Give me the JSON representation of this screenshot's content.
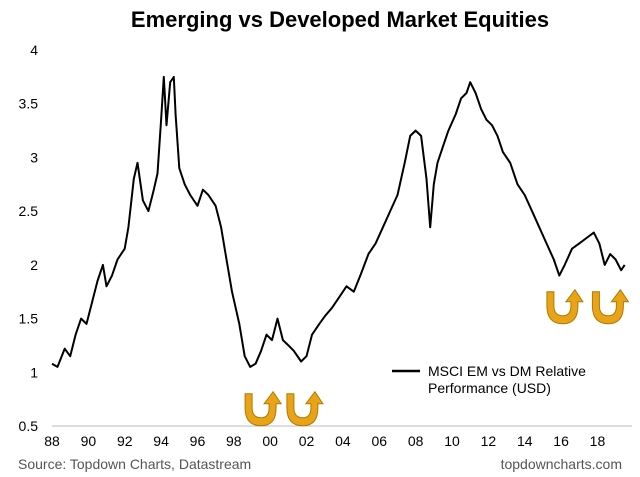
{
  "chart_data": {
    "type": "line",
    "title": "Emerging vs Developed Market Equities",
    "xlabel": "",
    "ylabel": "",
    "x_ticks": [
      "88",
      "90",
      "92",
      "94",
      "96",
      "98",
      "00",
      "02",
      "04",
      "06",
      "08",
      "10",
      "12",
      "14",
      "16",
      "18"
    ],
    "y_ticks": [
      "4",
      "3.5",
      "3",
      "2.5",
      "2",
      "1.5",
      "1",
      "0.5"
    ],
    "xlim": [
      1988,
      2019.9
    ],
    "ylim": [
      0.5,
      4
    ],
    "grid": false,
    "legend_position": "bottom-right",
    "series": [
      {
        "name": "MSCI EM vs DM Relative Performance (USD)",
        "color": "#000000",
        "x": [
          1988.0,
          1988.3,
          1988.7,
          1989.0,
          1989.3,
          1989.6,
          1989.9,
          1990.2,
          1990.5,
          1990.8,
          1991.0,
          1991.3,
          1991.6,
          1992.0,
          1992.2,
          1992.5,
          1992.7,
          1993.0,
          1993.3,
          1993.6,
          1993.8,
          1994.0,
          1994.15,
          1994.3,
          1994.5,
          1994.7,
          1994.8,
          1995.0,
          1995.3,
          1995.6,
          1996.0,
          1996.3,
          1996.6,
          1997.0,
          1997.3,
          1997.6,
          1997.9,
          1998.3,
          1998.6,
          1998.9,
          1999.2,
          1999.5,
          1999.8,
          2000.1,
          2000.4,
          2000.7,
          2001.0,
          2001.3,
          2001.7,
          2002.0,
          2002.3,
          2002.7,
          2003.0,
          2003.4,
          2003.8,
          2004.2,
          2004.6,
          2005.0,
          2005.4,
          2005.8,
          2006.2,
          2006.6,
          2007.0,
          2007.4,
          2007.7,
          2008.0,
          2008.3,
          2008.6,
          2008.8,
          2009.0,
          2009.2,
          2009.5,
          2009.8,
          2010.2,
          2010.5,
          2010.8,
          2011.0,
          2011.3,
          2011.6,
          2011.9,
          2012.2,
          2012.5,
          2012.8,
          2013.2,
          2013.6,
          2014.0,
          2014.4,
          2014.8,
          2015.2,
          2015.6,
          2015.9,
          2016.2,
          2016.6,
          2017.0,
          2017.4,
          2017.8,
          2018.1,
          2018.4,
          2018.7,
          2019.0,
          2019.3,
          2019.5
        ],
        "y": [
          1.08,
          1.05,
          1.22,
          1.15,
          1.35,
          1.5,
          1.45,
          1.65,
          1.85,
          2.0,
          1.8,
          1.9,
          2.05,
          2.15,
          2.35,
          2.8,
          2.95,
          2.6,
          2.5,
          2.7,
          2.85,
          3.35,
          3.75,
          3.3,
          3.7,
          3.75,
          3.4,
          2.9,
          2.75,
          2.65,
          2.55,
          2.7,
          2.65,
          2.55,
          2.35,
          2.05,
          1.75,
          1.45,
          1.15,
          1.05,
          1.08,
          1.2,
          1.35,
          1.3,
          1.5,
          1.3,
          1.25,
          1.2,
          1.1,
          1.15,
          1.35,
          1.45,
          1.52,
          1.6,
          1.7,
          1.8,
          1.75,
          1.92,
          2.1,
          2.2,
          2.35,
          2.5,
          2.65,
          2.95,
          3.2,
          3.25,
          3.2,
          2.8,
          2.35,
          2.75,
          2.95,
          3.1,
          3.25,
          3.4,
          3.55,
          3.6,
          3.7,
          3.6,
          3.45,
          3.35,
          3.3,
          3.2,
          3.05,
          2.95,
          2.75,
          2.65,
          2.5,
          2.35,
          2.2,
          2.05,
          1.9,
          2.0,
          2.15,
          2.2,
          2.25,
          2.3,
          2.2,
          2.0,
          2.1,
          2.05,
          1.95,
          2.0
        ]
      }
    ],
    "annotations": [
      {
        "type": "rebound-arrow",
        "x": 1999.5,
        "y": 0.67
      },
      {
        "type": "rebound-arrow",
        "x": 2001.8,
        "y": 0.67
      },
      {
        "type": "rebound-arrow",
        "x": 2016.1,
        "y": 1.62
      },
      {
        "type": "rebound-arrow",
        "x": 2018.6,
        "y": 1.62
      }
    ]
  },
  "footer": {
    "source": "Source: Topdown Charts, Datastream",
    "site": "topdowncharts.com"
  },
  "colors": {
    "line": "#000000",
    "arrow": "#E8A317",
    "arrow_outline": "#B07A00"
  }
}
